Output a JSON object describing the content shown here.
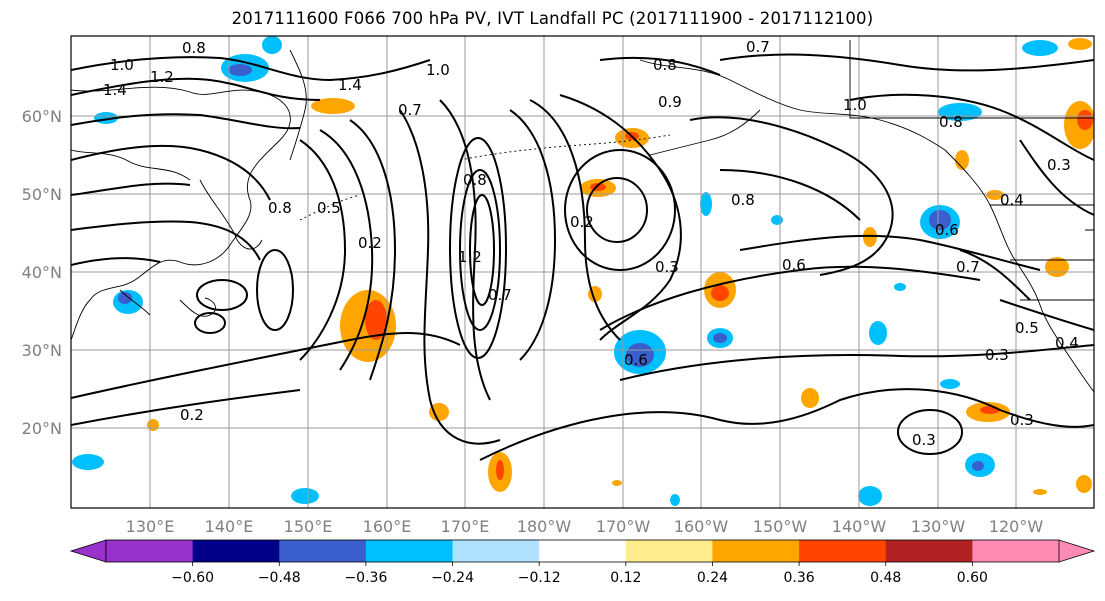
{
  "title": "2017111600 F066 700 hPa PV, IVT Landfall PC (2017111900 - 2017112100)",
  "map": {
    "lat_labels": [
      "60°N",
      "50°N",
      "40°N",
      "30°N",
      "20°N"
    ],
    "lon_labels": [
      "130°E",
      "140°E",
      "150°E",
      "160°E",
      "170°E",
      "180°W",
      "170°W",
      "160°W",
      "150°W",
      "140°W",
      "130°W",
      "120°W"
    ],
    "contour_labels": [
      "0.8",
      "1.0",
      "1.2",
      "1.4",
      "1.4",
      "1.0",
      "0.7",
      "0.9",
      "0.7",
      "0.8",
      "1.0",
      "0.8",
      "0.8",
      "0.5",
      "0.2",
      "0.8",
      "1.2",
      "0.7",
      "0.2",
      "0.3",
      "0.6",
      "0.6",
      "0.8",
      "0.6",
      "0.7",
      "0.5",
      "0.4",
      "0.3",
      "0.3",
      "0.2",
      "0.3",
      "0.3",
      "0.4"
    ],
    "colors": {
      "land_outline": "#000000",
      "grid": "#9a9a9a",
      "contour": "#000000"
    }
  },
  "colorbar": {
    "ticks": [
      "−0.60",
      "−0.48",
      "−0.36",
      "−0.24",
      "−0.12",
      "0.12",
      "0.24",
      "0.36",
      "0.48",
      "0.60"
    ],
    "colors": [
      "#9932cc",
      "#00008b",
      "#3a5fcd",
      "#00bfff",
      "#b0e2ff",
      "#ffffff",
      "#ffec8b",
      "#ffa500",
      "#ff4500",
      "#b22222",
      "#ff8ab4"
    ]
  }
}
